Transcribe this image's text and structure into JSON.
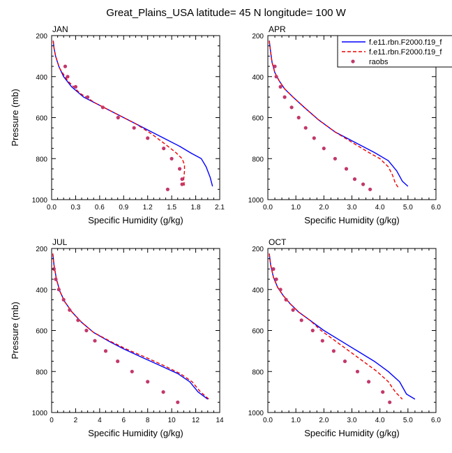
{
  "figure": {
    "title": "Great_Plains_USA  latitude= 45 N longitude= 100 W"
  },
  "legend": {
    "entries": [
      {
        "label": "f.e11.rbn.F2000.f19_f",
        "color": "#0000ff",
        "style": "solid"
      },
      {
        "label": "f.e11.rbn.F2000.f19_f",
        "color": "#ee0000",
        "style": "dashed"
      },
      {
        "label": "raobs",
        "color": "#c2386b",
        "style": "marker"
      }
    ]
  },
  "chart_data": [
    {
      "type": "line",
      "title": "JAN",
      "xlabel": "Specific Humidity (g/kg)",
      "ylabel": "Pressure (mb)",
      "xlim": [
        0,
        2.1
      ],
      "ylim": [
        200,
        1000
      ],
      "y_inverted": true,
      "xticks": [
        "0.0",
        "0.3",
        "0.6",
        "0.9",
        "1.2",
        "1.5",
        "1.8",
        "2.1"
      ],
      "xtick_values": [
        0,
        0.3,
        0.6,
        0.9,
        1.2,
        1.5,
        1.8,
        2.1
      ],
      "yticks": [
        "200",
        "400",
        "600",
        "800",
        "1000"
      ],
      "ytick_values": [
        200,
        400,
        600,
        800,
        1000
      ],
      "series": [
        {
          "name": "f.e11.rbn.F2000.f19_f (blue)",
          "style": "solid",
          "color": "#0000ff",
          "x": [
            0.02,
            0.03,
            0.05,
            0.09,
            0.15,
            0.25,
            0.4,
            0.6,
            0.8,
            1.0,
            1.2,
            1.4,
            1.6,
            1.75,
            1.87,
            1.93,
            1.98,
            2.01
          ],
          "p": [
            225,
            260,
            300,
            350,
            400,
            450,
            500,
            540,
            580,
            620,
            660,
            700,
            740,
            775,
            800,
            840,
            890,
            935
          ]
        },
        {
          "name": "f.e11.rbn.F2000.f19_f (red)",
          "style": "dashed",
          "color": "#ee0000",
          "x": [
            0.02,
            0.03,
            0.05,
            0.1,
            0.2,
            0.35,
            0.55,
            0.8,
            1.05,
            1.25,
            1.42,
            1.55,
            1.63,
            1.66,
            1.66,
            1.65,
            1.66
          ],
          "p": [
            225,
            260,
            300,
            360,
            420,
            480,
            530,
            580,
            630,
            680,
            730,
            770,
            800,
            830,
            860,
            900,
            940
          ]
        },
        {
          "name": "raobs",
          "style": "marker",
          "color": "#c2386b",
          "x": [
            0.17,
            0.2,
            0.3,
            0.45,
            0.64,
            0.83,
            1.03,
            1.2,
            1.4,
            1.5,
            1.6,
            1.63,
            1.63,
            1.45
          ],
          "p": [
            350,
            400,
            450,
            500,
            550,
            600,
            650,
            700,
            750,
            800,
            850,
            900,
            925,
            950
          ]
        }
      ]
    },
    {
      "type": "line",
      "title": "APR",
      "xlabel": "Specific Humidity (g/kg)",
      "ylabel": "",
      "xlim": [
        0,
        6
      ],
      "ylim": [
        200,
        1000
      ],
      "y_inverted": true,
      "xticks": [
        "0.0",
        "1.0",
        "2.0",
        "3.0",
        "4.0",
        "5.0",
        "6.0"
      ],
      "xtick_values": [
        0,
        1,
        2,
        3,
        4,
        5,
        6
      ],
      "yticks": [
        "200",
        "400",
        "600",
        "800",
        "1000"
      ],
      "ytick_values": [
        200,
        400,
        600,
        800,
        1000
      ],
      "series": [
        {
          "name": "f.e11.rbn.F2000.f19_f (blue)",
          "style": "solid",
          "color": "#0000ff",
          "x": [
            0.05,
            0.1,
            0.15,
            0.25,
            0.4,
            0.6,
            0.9,
            1.3,
            1.8,
            2.4,
            3.1,
            3.8,
            4.3,
            4.6,
            4.8,
            5.0
          ],
          "p": [
            225,
            280,
            330,
            380,
            420,
            460,
            500,
            550,
            610,
            670,
            720,
            770,
            810,
            860,
            910,
            935
          ]
        },
        {
          "name": "f.e11.rbn.F2000.f19_f (red)",
          "style": "dashed",
          "color": "#ee0000",
          "x": [
            0.05,
            0.1,
            0.15,
            0.25,
            0.4,
            0.6,
            0.9,
            1.3,
            1.8,
            2.4,
            3.0,
            3.6,
            4.0,
            4.3,
            4.45,
            4.55,
            4.65
          ],
          "p": [
            225,
            280,
            330,
            380,
            420,
            460,
            500,
            550,
            610,
            670,
            720,
            770,
            800,
            840,
            880,
            920,
            940
          ]
        },
        {
          "name": "raobs",
          "style": "marker",
          "color": "#c2386b",
          "x": [
            0.25,
            0.3,
            0.45,
            0.6,
            0.85,
            1.1,
            1.35,
            1.65,
            2.0,
            2.4,
            2.8,
            3.1,
            3.4,
            3.65
          ],
          "p": [
            350,
            400,
            450,
            500,
            550,
            600,
            650,
            700,
            750,
            800,
            850,
            900,
            925,
            950
          ]
        }
      ]
    },
    {
      "type": "line",
      "title": "JUL",
      "xlabel": "Specific Humidity (g/kg)",
      "ylabel": "Pressure (mb)",
      "xlim": [
        0,
        14
      ],
      "ylim": [
        200,
        1000
      ],
      "y_inverted": true,
      "xticks": [
        "0",
        "2",
        "4",
        "6",
        "8",
        "10",
        "12",
        "14"
      ],
      "xtick_values": [
        0,
        2,
        4,
        6,
        8,
        10,
        12,
        14
      ],
      "yticks": [
        "200",
        "400",
        "600",
        "800",
        "1000"
      ],
      "ytick_values": [
        200,
        400,
        600,
        800,
        1000
      ],
      "series": [
        {
          "name": "f.e11.rbn.F2000.f19_f (blue)",
          "style": "solid",
          "color": "#0000ff",
          "x": [
            0.1,
            0.2,
            0.4,
            0.7,
            1.1,
            1.7,
            2.5,
            3.5,
            4.7,
            6.0,
            7.5,
            9.0,
            10.5,
            11.5,
            12.2,
            13.0
          ],
          "p": [
            225,
            280,
            350,
            410,
            460,
            510,
            560,
            610,
            650,
            690,
            730,
            770,
            810,
            850,
            900,
            935
          ]
        },
        {
          "name": "f.e11.rbn.F2000.f19_f (red)",
          "style": "dashed",
          "color": "#ee0000",
          "x": [
            0.1,
            0.2,
            0.4,
            0.7,
            1.1,
            1.7,
            2.5,
            3.5,
            4.8,
            6.2,
            7.8,
            9.3,
            10.7,
            11.7,
            12.4,
            13.1
          ],
          "p": [
            225,
            280,
            350,
            410,
            460,
            510,
            560,
            610,
            650,
            690,
            730,
            770,
            810,
            850,
            900,
            935
          ]
        },
        {
          "name": "raobs",
          "style": "marker",
          "color": "#c2386b",
          "x": [
            0.2,
            0.35,
            0.6,
            1.0,
            1.5,
            2.2,
            2.9,
            3.6,
            4.5,
            5.5,
            6.7,
            8.0,
            9.3,
            10.5
          ],
          "p": [
            300,
            350,
            400,
            450,
            500,
            550,
            600,
            650,
            700,
            750,
            800,
            850,
            900,
            950
          ]
        }
      ]
    },
    {
      "type": "line",
      "title": "OCT",
      "xlabel": "Specific Humidity (g/kg)",
      "ylabel": "",
      "xlim": [
        0,
        6
      ],
      "ylim": [
        200,
        1000
      ],
      "y_inverted": true,
      "xticks": [
        "0.0",
        "1.0",
        "2.0",
        "3.0",
        "4.0",
        "5.0",
        "6.0"
      ],
      "xtick_values": [
        0,
        1,
        2,
        3,
        4,
        5,
        6
      ],
      "yticks": [
        "200",
        "400",
        "600",
        "800",
        "1000"
      ],
      "ytick_values": [
        200,
        400,
        600,
        800,
        1000
      ],
      "series": [
        {
          "name": "f.e11.rbn.F2000.f19_f (blue)",
          "style": "solid",
          "color": "#0000ff",
          "x": [
            0.05,
            0.1,
            0.2,
            0.35,
            0.55,
            0.8,
            1.1,
            1.5,
            2.0,
            2.6,
            3.2,
            3.8,
            4.3,
            4.7,
            4.95,
            5.25
          ],
          "p": [
            225,
            280,
            340,
            390,
            430,
            470,
            510,
            550,
            600,
            650,
            700,
            750,
            800,
            850,
            910,
            935
          ]
        },
        {
          "name": "f.e11.rbn.F2000.f19_f (red)",
          "style": "dashed",
          "color": "#ee0000",
          "x": [
            0.05,
            0.1,
            0.2,
            0.35,
            0.55,
            0.8,
            1.1,
            1.5,
            1.9,
            2.4,
            2.9,
            3.4,
            3.9,
            4.3,
            4.55,
            4.8
          ],
          "p": [
            225,
            280,
            340,
            390,
            430,
            470,
            510,
            550,
            600,
            650,
            700,
            750,
            800,
            850,
            900,
            935
          ]
        },
        {
          "name": "raobs",
          "style": "marker",
          "color": "#c2386b",
          "x": [
            0.2,
            0.3,
            0.45,
            0.65,
            0.9,
            1.2,
            1.6,
            1.95,
            2.35,
            2.75,
            3.2,
            3.6,
            4.1,
            4.35
          ],
          "p": [
            300,
            350,
            400,
            450,
            500,
            550,
            600,
            650,
            700,
            750,
            800,
            850,
            900,
            950
          ]
        }
      ]
    }
  ]
}
